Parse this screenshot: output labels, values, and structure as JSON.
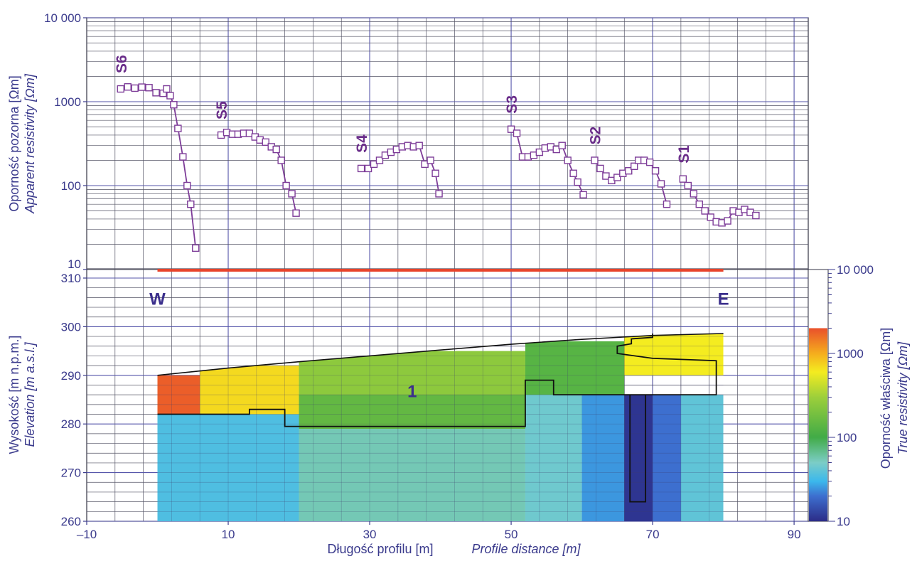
{
  "chart_data": [
    {
      "type": "line",
      "panel": "apparent-resistivity",
      "ylabel": "Oporność pozorna [Ωm]",
      "ylabel_en": "Apparent resistivity [Ωm]",
      "y_scale": "log",
      "ylim": [
        10,
        10000
      ],
      "y_ticks": [
        10,
        100,
        1000,
        10000
      ],
      "y_tick_labels": [
        "10",
        "100",
        "1000",
        "10 000"
      ],
      "xlim": [
        -10,
        92
      ],
      "grid": true,
      "series": [
        {
          "name": "S6",
          "color": "#7d3c98",
          "points": [
            [
              -5.2,
              1420
            ],
            [
              -4.2,
              1500
            ],
            [
              -3.2,
              1450
            ],
            [
              -2.2,
              1490
            ],
            [
              -1.2,
              1470
            ],
            [
              -0.2,
              1280
            ],
            [
              0.8,
              1260
            ],
            [
              1.3,
              1420
            ],
            [
              1.8,
              1180
            ],
            [
              2.3,
              920
            ],
            [
              2.9,
              480
            ],
            [
              3.6,
              220
            ],
            [
              4.2,
              100
            ],
            [
              4.7,
              60
            ],
            [
              5.4,
              18
            ]
          ]
        },
        {
          "name": "S5",
          "color": "#7d3c98",
          "points": [
            [
              9.0,
              400
            ],
            [
              9.8,
              430
            ],
            [
              10.6,
              410
            ],
            [
              11.4,
              410
            ],
            [
              12.2,
              420
            ],
            [
              13.0,
              420
            ],
            [
              13.8,
              380
            ],
            [
              14.5,
              350
            ],
            [
              15.3,
              330
            ],
            [
              16.1,
              290
            ],
            [
              16.8,
              270
            ],
            [
              17.5,
              200
            ],
            [
              18.2,
              100
            ],
            [
              19.0,
              80
            ],
            [
              19.6,
              47
            ]
          ]
        },
        {
          "name": "S4",
          "color": "#7d3c98",
          "points": [
            [
              28.8,
              160
            ],
            [
              29.8,
              160
            ],
            [
              30.6,
              180
            ],
            [
              31.4,
              200
            ],
            [
              32.2,
              230
            ],
            [
              33.0,
              250
            ],
            [
              33.8,
              270
            ],
            [
              34.6,
              290
            ],
            [
              35.4,
              300
            ],
            [
              36.2,
              290
            ],
            [
              37.0,
              300
            ],
            [
              37.8,
              180
            ],
            [
              38.6,
              200
            ],
            [
              39.3,
              140
            ],
            [
              39.8,
              80
            ]
          ]
        },
        {
          "name": "S3",
          "color": "#7d3c98",
          "points": [
            [
              50.0,
              470
            ],
            [
              50.8,
              420
            ],
            [
              51.6,
              220
            ],
            [
              52.4,
              220
            ],
            [
              53.2,
              230
            ],
            [
              54.0,
              250
            ],
            [
              54.8,
              280
            ],
            [
              55.6,
              290
            ],
            [
              56.4,
              270
            ],
            [
              57.2,
              300
            ],
            [
              58.0,
              200
            ],
            [
              58.8,
              140
            ],
            [
              59.4,
              110
            ],
            [
              60.2,
              78
            ]
          ]
        },
        {
          "name": "S2",
          "color": "#7d3c98",
          "points": [
            [
              61.8,
              200
            ],
            [
              62.6,
              160
            ],
            [
              63.4,
              130
            ],
            [
              64.2,
              115
            ],
            [
              65.0,
              125
            ],
            [
              65.8,
              140
            ],
            [
              66.6,
              150
            ],
            [
              67.4,
              170
            ],
            [
              68.0,
              200
            ],
            [
              68.8,
              200
            ],
            [
              69.6,
              190
            ],
            [
              70.4,
              150
            ],
            [
              71.2,
              105
            ],
            [
              72.0,
              60
            ]
          ]
        },
        {
          "name": "S1",
          "color": "#7d3c98",
          "points": [
            [
              74.3,
              120
            ],
            [
              75.0,
              100
            ],
            [
              75.8,
              80
            ],
            [
              76.6,
              60
            ],
            [
              77.4,
              50
            ],
            [
              78.2,
              42
            ],
            [
              79.0,
              37
            ],
            [
              79.8,
              36
            ],
            [
              80.6,
              38
            ],
            [
              81.4,
              50
            ],
            [
              82.2,
              48
            ],
            [
              83.0,
              52
            ],
            [
              83.8,
              48
            ],
            [
              84.6,
              44
            ]
          ]
        }
      ]
    },
    {
      "type": "heatmap",
      "panel": "resistivity-model",
      "ylabel": "Wysokość [m n.p.m.]",
      "ylabel_en": "Elevation [m a.s.l.]",
      "ylim": [
        260,
        312
      ],
      "y_ticks": [
        260,
        270,
        280,
        290,
        300,
        310
      ],
      "xlabel": "Długość profilu [m]",
      "xlabel_en": "Profile distance [m]",
      "xlim": [
        -10,
        92
      ],
      "x_ticks": [
        -10,
        10,
        30,
        50,
        70,
        90
      ],
      "x_tick_labels": [
        "–10",
        "10",
        "30",
        "50",
        "70",
        "90"
      ],
      "profile_x": [
        0,
        80
      ],
      "surface": [
        [
          0,
          290
        ],
        [
          10,
          291.5
        ],
        [
          20,
          292.8
        ],
        [
          30,
          294
        ],
        [
          40,
          295.2
        ],
        [
          50,
          296.4
        ],
        [
          60,
          297.4
        ],
        [
          70,
          298.2
        ],
        [
          80,
          298.6
        ]
      ],
      "colorbar": {
        "ylabel": "Oporność właściwa [Ωm]",
        "ylabel_en": "True resistivity [Ωm]",
        "scale": "log",
        "ticks": [
          10,
          100,
          1000,
          10000
        ],
        "tick_labels": [
          "10",
          "100",
          "1000",
          "10 000"
        ],
        "colors": [
          [
            10,
            "#2c2c87"
          ],
          [
            20,
            "#3d6fcf"
          ],
          [
            30,
            "#3bb8ec"
          ],
          [
            50,
            "#7ccdc6"
          ],
          [
            100,
            "#41ab47"
          ],
          [
            300,
            "#9ccf3b"
          ],
          [
            600,
            "#f4ec20"
          ],
          [
            1000,
            "#f5ad1d"
          ],
          [
            2000,
            "#e9502b"
          ]
        ],
        "top_limit": 2000
      },
      "zones": [
        {
          "x0": 0,
          "x1": 6,
          "y0": 282,
          "y1": 290,
          "value": 1800
        },
        {
          "x0": 6,
          "x1": 20,
          "y0": 282,
          "y1": 292,
          "value": 700
        },
        {
          "x0": 20,
          "x1": 52,
          "y0": 286,
          "y1": 295,
          "value": 250
        },
        {
          "x0": 20,
          "x1": 52,
          "y0": 279,
          "y1": 286,
          "value": 150
        },
        {
          "x0": 52,
          "x1": 66,
          "y0": 279,
          "y1": 297,
          "value": 130
        },
        {
          "x0": 66,
          "x1": 80,
          "y0": 290,
          "y1": 298.5,
          "value": 600
        },
        {
          "x0": 0,
          "x1": 20,
          "y0": 260,
          "y1": 282,
          "value": 35
        },
        {
          "x0": 20,
          "x1": 52,
          "y0": 260,
          "y1": 279,
          "value": 55
        },
        {
          "x0": 52,
          "x1": 60,
          "y0": 260,
          "y1": 286,
          "value": 45
        },
        {
          "x0": 60,
          "x1": 66,
          "y0": 260,
          "y1": 286,
          "value": 25
        },
        {
          "x0": 66,
          "x1": 70,
          "y0": 260,
          "y1": 286,
          "value": 11
        },
        {
          "x0": 70,
          "x1": 74,
          "y0": 260,
          "y1": 286,
          "value": 20
        },
        {
          "x0": 74,
          "x1": 80,
          "y0": 260,
          "y1": 286,
          "value": 40
        }
      ],
      "boundary": [
        [
          0,
          282
        ],
        [
          13,
          282
        ],
        [
          13,
          283
        ],
        [
          18,
          283
        ],
        [
          18,
          279.5
        ],
        [
          52,
          279.5
        ],
        [
          52,
          289
        ],
        [
          56,
          289
        ],
        [
          56,
          286
        ],
        [
          79,
          286
        ],
        [
          79,
          293
        ],
        [
          70,
          293.5
        ],
        [
          65,
          294.5
        ],
        [
          65,
          296
        ],
        [
          67,
          296.5
        ],
        [
          67,
          297.5
        ],
        [
          70,
          297.8
        ],
        [
          70,
          298.6
        ]
      ],
      "boundary_pillar": [
        [
          66.8,
          286
        ],
        [
          66.8,
          264
        ],
        [
          69,
          264
        ],
        [
          69,
          286
        ]
      ],
      "profile_line": {
        "x0": 0,
        "x1": 80,
        "color": "#e8432b"
      },
      "annotations": [
        {
          "text": "W",
          "x": 0,
          "y": 306
        },
        {
          "text": "E",
          "x": 80,
          "y": 306
        },
        {
          "text": "1",
          "x": 36,
          "y": 287
        }
      ]
    }
  ]
}
